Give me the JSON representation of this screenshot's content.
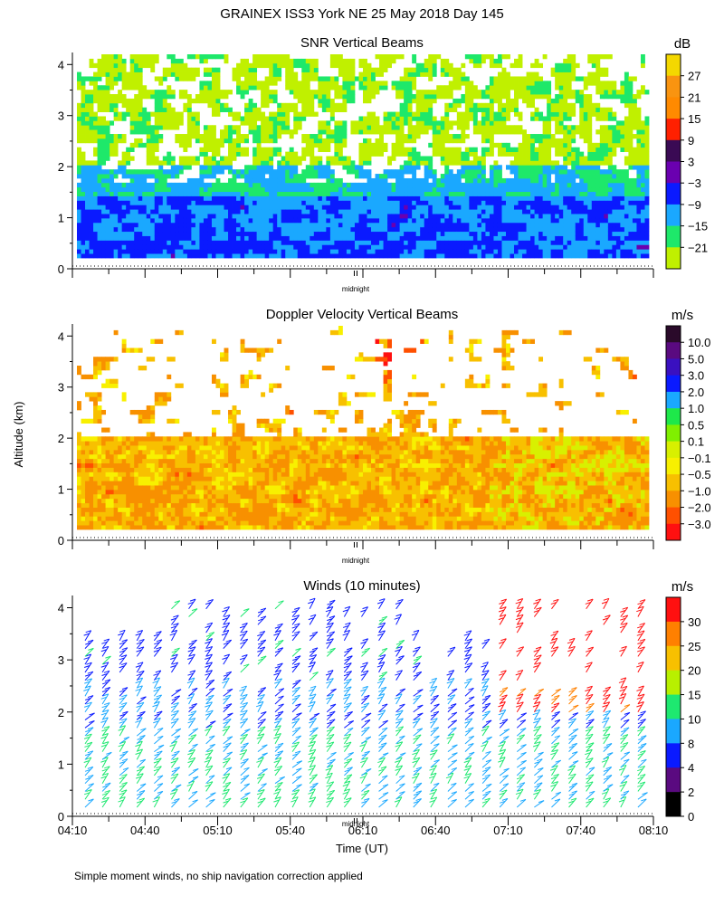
{
  "header": {
    "title": "GRAINEX ISS3 York NE  25 May 2018 Day 145",
    "ylabel": "Altitude (km)",
    "xlabel": "Time (UT)",
    "footnote": "Simple moment winds, no ship navigation correction applied"
  },
  "time_ticks": [
    "04:10",
    "04:40",
    "05:10",
    "05:40",
    "06:10",
    "06:40",
    "07:10",
    "07:40",
    "08:10"
  ],
  "altitude_ticks": [
    "0",
    "1",
    "2",
    "3",
    "4"
  ],
  "midnight_label": "midnight",
  "chart_data": [
    {
      "type": "heatmap",
      "title": "SNR Vertical Beams",
      "unit": "dB",
      "x_range": [
        "04:10",
        "08:10"
      ],
      "y_range_km": [
        0,
        4
      ],
      "colorbar": {
        "labels": [
          "27",
          "21",
          "15",
          "9",
          "3",
          "−3",
          "−9",
          "−15",
          "−21"
        ],
        "colors": [
          "#f4d800",
          "#f99410",
          "#ff8a00",
          "#ff2000",
          "#3a0a54",
          "#6a00b0",
          "#0a1aff",
          "#1aa8ff",
          "#1ee86a",
          "#c0f000"
        ]
      }
    },
    {
      "type": "heatmap",
      "title": "Doppler Velocity Vertical Beams",
      "unit": "m/s",
      "x_range": [
        "04:10",
        "08:10"
      ],
      "y_range_km": [
        0,
        4
      ],
      "colorbar": {
        "labels": [
          "10.0",
          "5.0",
          "3.0",
          "2.0",
          "1.0",
          "0.5",
          "0.1",
          "−0.1",
          "−0.5",
          "−1.0",
          "−2.0",
          "−3.0"
        ],
        "colors": [
          "#2a0a2a",
          "#5a0a80",
          "#3a10c0",
          "#0a1aff",
          "#1aa8ff",
          "#1ee84a",
          "#80f000",
          "#d8f000",
          "#f8f000",
          "#f8c000",
          "#f89000",
          "#ff5000",
          "#ff1010"
        ]
      }
    },
    {
      "type": "scatter",
      "title": "Winds (10 minutes)",
      "unit": "m/s",
      "x_range": [
        "04:10",
        "08:10"
      ],
      "y_range_km": [
        0,
        4
      ],
      "colorbar": {
        "labels": [
          "30",
          "25",
          "20",
          "15",
          "10",
          "8",
          "4",
          "2",
          "0"
        ],
        "colors": [
          "#ff1010",
          "#ff8000",
          "#f8c000",
          "#b8f000",
          "#1ee870",
          "#1aa8ff",
          "#0a1aff",
          "#5a0a80",
          "#000000"
        ]
      }
    }
  ]
}
